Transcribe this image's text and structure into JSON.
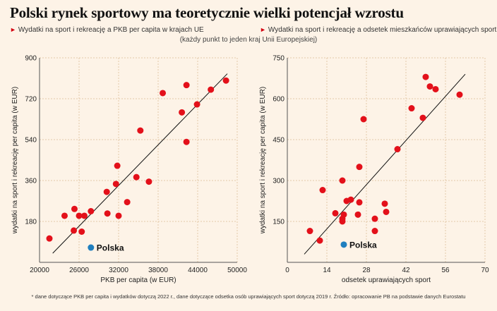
{
  "title": "Polski rynek sportowy ma teoretycznie wielki potencjał wzrostu",
  "left_subtitle": "Wydatki na sport i rekreację a PKB per capita w krajach UE",
  "right_subtitle": "Wydatki na sport i rekreację a odsetek mieszkańców uprawiających sport",
  "note": "(każdy punkt to jeden kraj Unii Europejskiej)",
  "footer": "* dane dotyczące PKB per capita i wydatków dotyczą 2022 r., dane dotyczące odsetka osób uprawiających sport dotyczą 2019 r. Źródło: opracowanie PB na podstawie danych Eurostatu",
  "colors": {
    "point": "#e3101a",
    "highlight": "#1f7fbf",
    "trend": "#111111",
    "grid": "#e3c9a8",
    "background": "#fdf3e7",
    "accent": "#d4000f"
  },
  "chart_data": [
    {
      "type": "scatter",
      "xlabel": "PKB per capita (w EUR)",
      "ylabel": "wydatki na sport i rekreację per capita (w EUR)",
      "xlim": [
        20000,
        50000
      ],
      "ylim": [
        0,
        900
      ],
      "xticks": [
        "20000",
        "26000",
        "32000",
        "38000",
        "44000",
        "50000"
      ],
      "yticks": [
        "180",
        "360",
        "540",
        "720",
        "900"
      ],
      "grid": true,
      "highlight": {
        "name": "Polska",
        "x": 27800,
        "y": 65
      },
      "trendline": [
        [
          22000,
          40
        ],
        [
          48500,
          830
        ]
      ],
      "points": [
        [
          21500,
          105
        ],
        [
          23800,
          205
        ],
        [
          25200,
          140
        ],
        [
          25300,
          235
        ],
        [
          26000,
          205
        ],
        [
          26400,
          135
        ],
        [
          26800,
          205
        ],
        [
          27800,
          225
        ],
        [
          30200,
          310
        ],
        [
          30300,
          215
        ],
        [
          31600,
          345
        ],
        [
          31800,
          425
        ],
        [
          32000,
          205
        ],
        [
          33300,
          265
        ],
        [
          34700,
          375
        ],
        [
          35300,
          580
        ],
        [
          36600,
          355
        ],
        [
          38700,
          745
        ],
        [
          41600,
          660
        ],
        [
          42300,
          780
        ],
        [
          42300,
          530
        ],
        [
          43900,
          695
        ],
        [
          46000,
          760
        ],
        [
          48300,
          800
        ]
      ]
    },
    {
      "type": "scatter",
      "xlabel": "odsetek uprawiających sport",
      "ylabel": "wydatki na sport i rekreację per capita (w EUR)",
      "xlim": [
        0,
        70
      ],
      "ylim": [
        0,
        750
      ],
      "xticks": [
        "0",
        "14",
        "28",
        "42",
        "56",
        "70"
      ],
      "yticks": [
        "150",
        "300",
        "450",
        "600",
        "750"
      ],
      "grid": true,
      "highlight": {
        "name": "Polska",
        "x": 20,
        "y": 65
      },
      "trendline": [
        [
          6,
          30
        ],
        [
          63,
          690
        ]
      ],
      "points": [
        [
          8,
          115
        ],
        [
          11.5,
          80
        ],
        [
          12.5,
          265
        ],
        [
          17,
          180
        ],
        [
          19.5,
          300
        ],
        [
          19.5,
          160
        ],
        [
          19.5,
          150
        ],
        [
          20,
          175
        ],
        [
          21,
          225
        ],
        [
          22.5,
          230
        ],
        [
          25,
          175
        ],
        [
          25.5,
          350
        ],
        [
          25.5,
          220
        ],
        [
          27,
          525
        ],
        [
          31,
          160
        ],
        [
          31,
          115
        ],
        [
          34.5,
          215
        ],
        [
          35,
          185
        ],
        [
          39,
          415
        ],
        [
          44,
          565
        ],
        [
          48,
          530
        ],
        [
          49,
          680
        ],
        [
          50.5,
          645
        ],
        [
          52.5,
          635
        ],
        [
          61,
          615
        ]
      ]
    }
  ]
}
